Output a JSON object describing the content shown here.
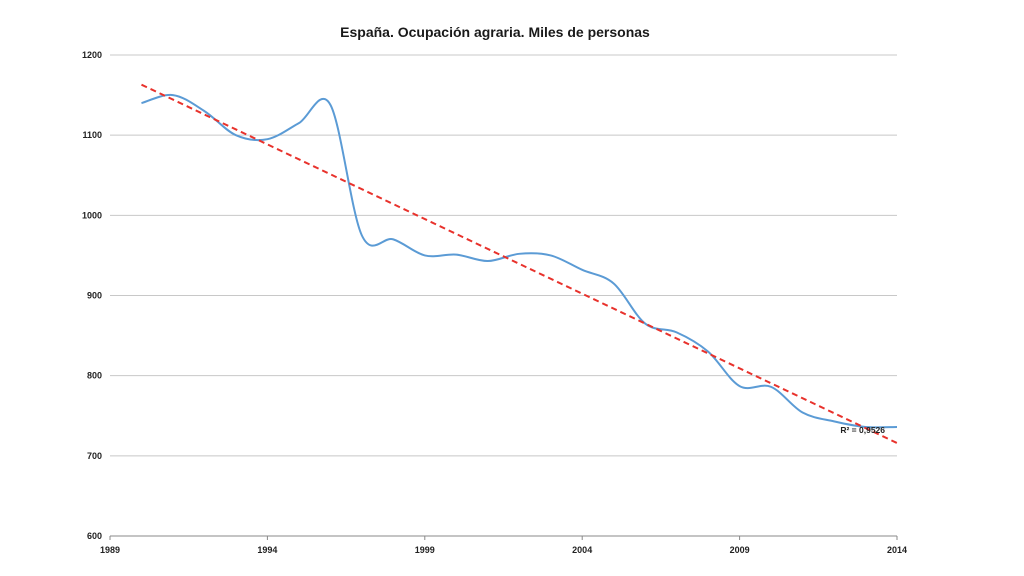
{
  "chart_data": {
    "type": "line",
    "title": "España. Ocupación agraria. Miles de personas",
    "xlabel": "",
    "ylabel": "",
    "xlim": [
      1989,
      2014
    ],
    "ylim": [
      600,
      1200
    ],
    "x_ticks": [
      "1989",
      "1994",
      "1999",
      "2004",
      "2009",
      "2014"
    ],
    "y_ticks": [
      "1200",
      "1100",
      "1000",
      "900",
      "800",
      "700",
      "600"
    ],
    "grid": true,
    "series": [
      {
        "color": "#5b9bd5",
        "x": [
          1990,
          1991,
          1992,
          1993,
          1994,
          1995,
          1996,
          1997,
          1998,
          1999,
          2000,
          2001,
          2002,
          2003,
          2004,
          2005,
          2006,
          2007,
          2008,
          2009,
          2010,
          2011,
          2012,
          2013,
          2014
        ],
        "y": [
          1140,
          1150,
          1130,
          1100,
          1095,
          1115,
          1138,
          975,
          970,
          950,
          951,
          943,
          952,
          950,
          932,
          915,
          865,
          854,
          830,
          787,
          786,
          754,
          743,
          736,
          736
        ]
      }
    ],
    "trendline": {
      "color": "#e8322c",
      "style": "dashed",
      "x": [
        1990,
        2014
      ],
      "y": [
        1163,
        716
      ],
      "label": "R² = 0,9526"
    }
  }
}
